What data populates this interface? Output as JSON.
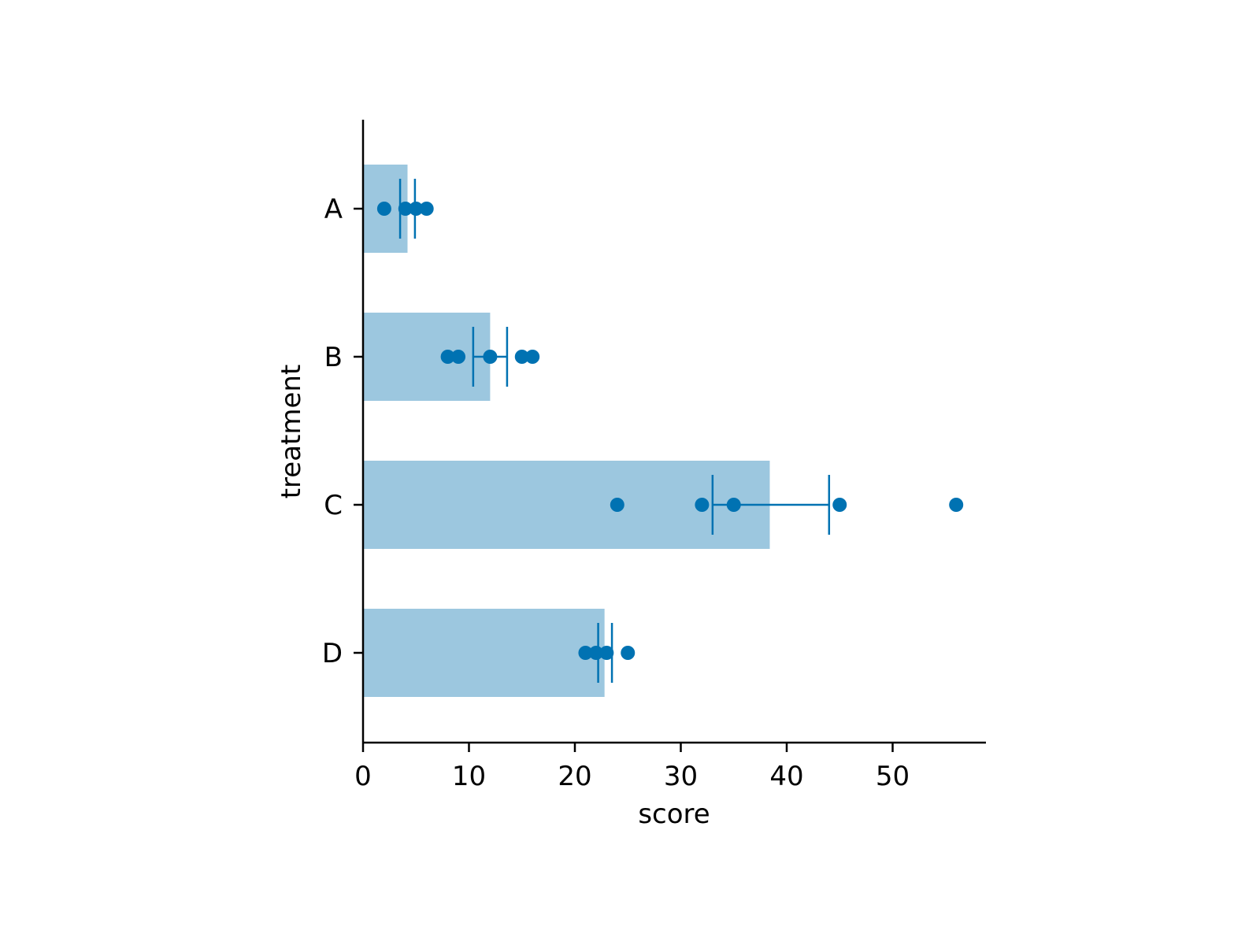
{
  "chart_data": {
    "type": "bar",
    "orientation": "horizontal",
    "xlabel": "score",
    "ylabel": "treatment",
    "categories": [
      "A",
      "B",
      "C",
      "D"
    ],
    "values": [
      4.2,
      12.0,
      38.4,
      22.8
    ],
    "error_ranges": [
      [
        3.5,
        4.9
      ],
      [
        10.4,
        13.6
      ],
      [
        33.0,
        44.0
      ],
      [
        22.2,
        23.5
      ]
    ],
    "points": [
      [
        2,
        4,
        5,
        6
      ],
      [
        8,
        9,
        12,
        15,
        16
      ],
      [
        24,
        32,
        35,
        45,
        56
      ],
      [
        21,
        22,
        23,
        25
      ]
    ],
    "xlim": [
      0,
      58.8
    ],
    "xticks": [
      "0",
      "10",
      "20",
      "30",
      "40",
      "50"
    ],
    "grid": false,
    "colors": {
      "bar": "#9cc7df",
      "marker": "#0072b2"
    }
  }
}
